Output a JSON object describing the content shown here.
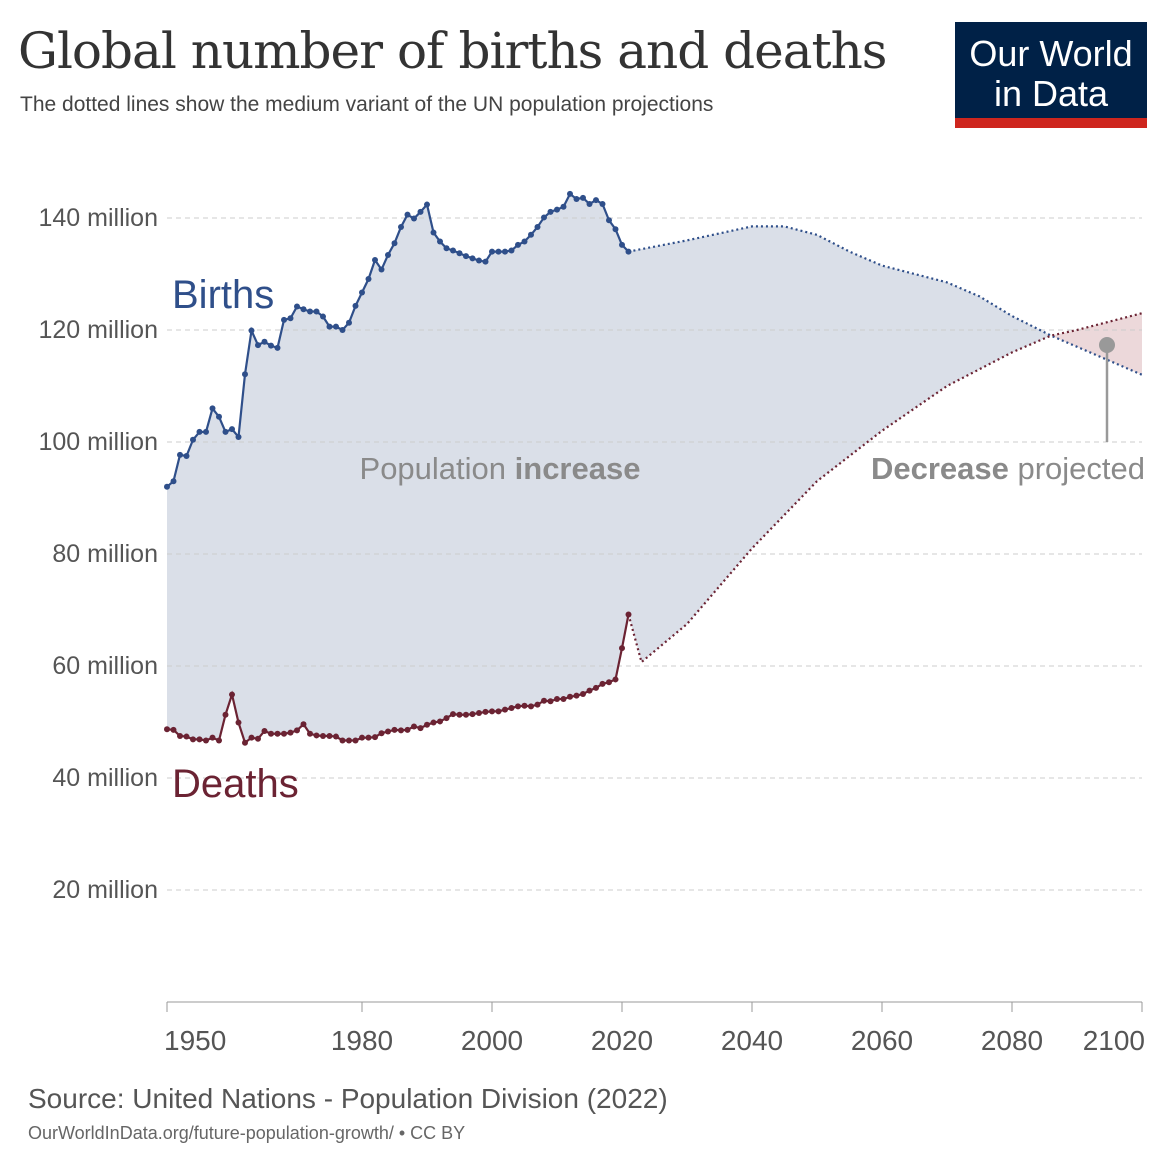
{
  "header": {
    "title": "Global number of births and deaths",
    "subtitle": "The dotted lines show the medium variant of the UN population projections"
  },
  "logo": {
    "line1": "Our World",
    "line2": "in Data",
    "bg": "#002147",
    "accent": "#ce261e"
  },
  "footer": {
    "source": "Source: United Nations - Population Division (2022)",
    "url": "OurWorldInData.org/future-population-growth/ • CC BY"
  },
  "chart_data": {
    "type": "line",
    "title": "Global number of births and deaths",
    "xlim": [
      1950,
      2100
    ],
    "ylim": [
      0,
      150
    ],
    "x_ticks": [
      1950,
      1980,
      2000,
      2020,
      2040,
      2060,
      2080,
      2100
    ],
    "y_ticks": [
      {
        "v": 20,
        "label": "20 million"
      },
      {
        "v": 40,
        "label": "40 million"
      },
      {
        "v": 60,
        "label": "60 million"
      },
      {
        "v": 80,
        "label": "80 million"
      },
      {
        "v": 100,
        "label": "100 million"
      },
      {
        "v": 120,
        "label": "120 million"
      },
      {
        "v": 140,
        "label": "140 million"
      }
    ],
    "grid": "horizontal dashed",
    "annotations": {
      "increase_pre": "Population ",
      "increase_bold": "increase",
      "decrease_bold": "Decrease",
      "decrease_post": " projected"
    },
    "fill_colors": {
      "increase": "#dadfe8",
      "decrease": "#ecd8da"
    },
    "series": [
      {
        "name": "Births",
        "color": "#2f4f8a",
        "historical": {
          "start": 1950,
          "values": [
            92,
            93,
            97.7,
            97.5,
            100.4,
            101.8,
            101.8,
            106,
            104.5,
            101.8,
            102.3,
            100.9,
            112.1,
            119.9,
            117.3,
            117.9,
            117.2,
            116.8,
            121.8,
            122.1,
            124.2,
            123.7,
            123.3,
            123.3,
            122.4,
            120.6,
            120.6,
            120,
            121.3,
            124.3,
            126.7,
            129.1,
            132.5,
            130.8,
            133.4,
            135.5,
            138.4,
            140.6,
            139.9,
            141.1,
            142.4,
            137.4,
            135.8,
            134.6,
            134.2,
            133.7,
            133.2,
            132.8,
            132.4,
            132.2,
            134,
            134,
            134,
            134.2,
            135.2,
            135.8,
            137,
            138.4,
            140.1,
            141.1,
            141.5,
            142,
            144.3,
            143.4,
            143.6,
            142.5,
            143.2,
            142.5,
            139.6,
            138,
            135.2,
            134
          ]
        },
        "projection": [
          [
            2021,
            134
          ],
          [
            2030,
            136
          ],
          [
            2040,
            138.5
          ],
          [
            2045,
            138.5
          ],
          [
            2050,
            137
          ],
          [
            2055,
            134
          ],
          [
            2060,
            131.5
          ],
          [
            2070,
            128.5
          ],
          [
            2075,
            126
          ],
          [
            2080,
            122.5
          ],
          [
            2086,
            119
          ],
          [
            2090,
            117
          ],
          [
            2100,
            112
          ]
        ]
      },
      {
        "name": "Deaths",
        "color": "#6b2333",
        "historical": {
          "start": 1950,
          "values": [
            48.7,
            48.6,
            47.5,
            47.4,
            46.9,
            46.9,
            46.7,
            47.2,
            46.7,
            51.3,
            54.9,
            49.9,
            46.3,
            47.2,
            47,
            48.4,
            47.9,
            47.9,
            47.9,
            48.1,
            48.5,
            49.6,
            47.9,
            47.6,
            47.5,
            47.5,
            47.4,
            46.7,
            46.7,
            46.7,
            47.2,
            47.2,
            47.3,
            48,
            48.3,
            48.6,
            48.5,
            48.6,
            49.2,
            48.9,
            49.5,
            49.9,
            50.1,
            50.7,
            51.4,
            51.3,
            51.3,
            51.4,
            51.6,
            51.8,
            51.9,
            51.9,
            52.2,
            52.5,
            52.8,
            52.9,
            52.8,
            53.1,
            53.8,
            53.7,
            54.1,
            54.1,
            54.5,
            54.7,
            55,
            55.6,
            56.1,
            56.8,
            57.1,
            57.6,
            63.2,
            69.2
          ]
        },
        "projection": [
          [
            2021,
            69.2
          ],
          [
            2023,
            60.7
          ],
          [
            2030,
            67.5
          ],
          [
            2040,
            81
          ],
          [
            2050,
            93
          ],
          [
            2060,
            102
          ],
          [
            2070,
            110
          ],
          [
            2080,
            116
          ],
          [
            2086,
            119
          ],
          [
            2090,
            120
          ],
          [
            2100,
            123
          ]
        ]
      }
    ]
  }
}
